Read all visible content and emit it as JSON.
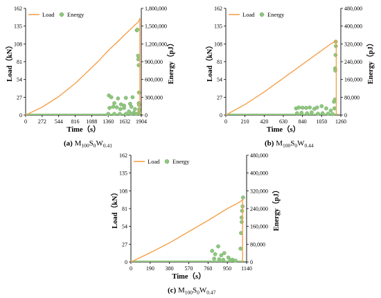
{
  "figure": {
    "charts": [
      {
        "caption": {
          "letter": "(a)",
          "name": "M",
          "s1": "100",
          "m2": "S",
          "s2": "0",
          "m3": "W",
          "s3": "0.41"
        }
      },
      {
        "caption": {
          "letter": "(b)",
          "name": "M",
          "s1": "100",
          "m2": "S",
          "s2": "0",
          "m3": "W",
          "s3": "0.44"
        }
      },
      {
        "caption": {
          "letter": "(c)",
          "name": "M",
          "s1": "100",
          "m2": "S",
          "s2": "0",
          "m3": "W",
          "s3": "0.47"
        }
      }
    ]
  },
  "chart_data": [
    {
      "type": "line",
      "xlabel": "Time（s）",
      "ylabel": "Load（kN）",
      "y2label": "Energy（pJ）",
      "xlim": [
        0,
        1904
      ],
      "ylim": [
        0,
        162
      ],
      "y2lim": [
        0,
        1800000
      ],
      "xticks": [
        "0",
        "272",
        "544",
        "816",
        "1088",
        "1360",
        "1632",
        "1904"
      ],
      "yticks": [
        "0",
        "27",
        "54",
        "81",
        "108",
        "135",
        "162"
      ],
      "y2ticks": [
        "0",
        "300,000",
        "600,000",
        "900,000",
        "1,200,000",
        "1,500,000",
        "1,800,000"
      ],
      "legend": [
        "Load",
        "Energy"
      ],
      "legend_position": "top-left",
      "line_color": "#f5a04a",
      "marker_color": "#8fc77f",
      "series": [
        {
          "name": "Load",
          "x": [
            0,
            272,
            544,
            816,
            1088,
            1200,
            1360,
            1500,
            1632,
            1780,
            1850,
            1870,
            1880
          ],
          "values": [
            0,
            12,
            28,
            48,
            72,
            82,
            98,
            110,
            122,
            135,
            141,
            144,
            147
          ]
        },
        {
          "name": "Energy",
          "x": [
            1370,
            1410,
            1460,
            1520,
            1570,
            1620,
            1650,
            1720,
            1740,
            1760,
            1800,
            1380,
            1440,
            1500,
            1560,
            1620,
            1700,
            1780,
            1360,
            1460,
            1550,
            1650,
            1740,
            1820,
            1830,
            1840,
            1850,
            1855,
            1860,
            1862,
            1865,
            1868,
            1870,
            1872,
            1875
          ],
          "values": [
            330000,
            300000,
            200000,
            280000,
            180000,
            160000,
            290000,
            190000,
            140000,
            300000,
            100000,
            120000,
            140000,
            130000,
            100000,
            120000,
            60000,
            40000,
            20000,
            20000,
            20000,
            20000,
            20000,
            20000,
            1430000,
            1440000,
            1000000,
            940000,
            840000,
            200000,
            380000,
            170000,
            100000,
            60000,
            30000
          ]
        }
      ]
    },
    {
      "type": "line",
      "xlabel": "Time（s）",
      "ylabel": "Load（kN）",
      "y2label": "Energy（pJ）",
      "xlim": [
        0,
        1260
      ],
      "ylim": [
        0,
        162
      ],
      "y2lim": [
        0,
        480000
      ],
      "xticks": [
        "0",
        "210",
        "420",
        "630",
        "840",
        "1050",
        "1260"
      ],
      "yticks": [
        "0",
        "27",
        "54",
        "81",
        "108",
        "135",
        "162"
      ],
      "y2ticks": [
        "0",
        "80,000",
        "160,000",
        "240,000",
        "320,000",
        "400,000",
        "480,000"
      ],
      "legend": [
        "Load",
        "Energy"
      ],
      "legend_position": "top-left",
      "line_color": "#f5a04a",
      "marker_color": "#8fc77f",
      "series": [
        {
          "name": "Load",
          "x": [
            0,
            210,
            420,
            630,
            840,
            1050,
            1150,
            1200,
            1210
          ],
          "values": [
            0,
            16,
            35,
            56,
            77,
            98,
            108,
            112,
            113
          ]
        },
        {
          "name": "Energy",
          "x": [
            770,
            800,
            840,
            880,
            920,
            970,
            1000,
            1050,
            1100,
            1150,
            780,
            830,
            890,
            940,
            1010,
            1060,
            1120,
            1170,
            1185,
            1195,
            1198,
            1200,
            1202,
            1204,
            1206,
            1190
          ],
          "values": [
            30000,
            34000,
            33000,
            32000,
            34000,
            28000,
            34000,
            40000,
            30000,
            20000,
            8000,
            10000,
            8000,
            12000,
            6000,
            8000,
            6000,
            4000,
            60000,
            70000,
            210000,
            200000,
            270000,
            330000,
            310000,
            30000
          ]
        }
      ]
    },
    {
      "type": "line",
      "xlabel": "Time（s）",
      "ylabel": "Load（kN）",
      "y2label": "Energy（pJ）",
      "xlim": [
        0,
        1140
      ],
      "ylim": [
        0,
        162
      ],
      "y2lim": [
        0,
        480000
      ],
      "xticks": [
        "0",
        "190",
        "380",
        "570",
        "760",
        "950",
        "1140"
      ],
      "yticks": [
        "0",
        "27",
        "54",
        "81",
        "108",
        "135",
        "162"
      ],
      "y2ticks": [
        "0",
        "80,000",
        "160,000",
        "240,000",
        "320,000",
        "400,000",
        "480,000"
      ],
      "legend": [
        "Load",
        "Energy"
      ],
      "legend_position": "top-left",
      "line_color": "#f5a04a",
      "marker_color": "#8fc77f",
      "series": [
        {
          "name": "Load",
          "x": [
            0,
            190,
            380,
            570,
            760,
            950,
            1050,
            1090,
            1100
          ],
          "values": [
            0,
            14,
            29,
            46,
            63,
            81,
            89,
            93,
            95
          ]
        },
        {
          "name": "Energy",
          "x": [
            800,
            830,
            860,
            890,
            920,
            960,
            1000,
            820,
            870,
            910,
            980,
            1030,
            1080,
            1085,
            1090,
            1095,
            1100,
            1105,
            1092
          ],
          "values": [
            50000,
            35000,
            70000,
            30000,
            40000,
            20000,
            10000,
            15000,
            12000,
            10000,
            8000,
            6000,
            60000,
            130000,
            200000,
            230000,
            250000,
            290000,
            180000
          ]
        }
      ]
    }
  ]
}
